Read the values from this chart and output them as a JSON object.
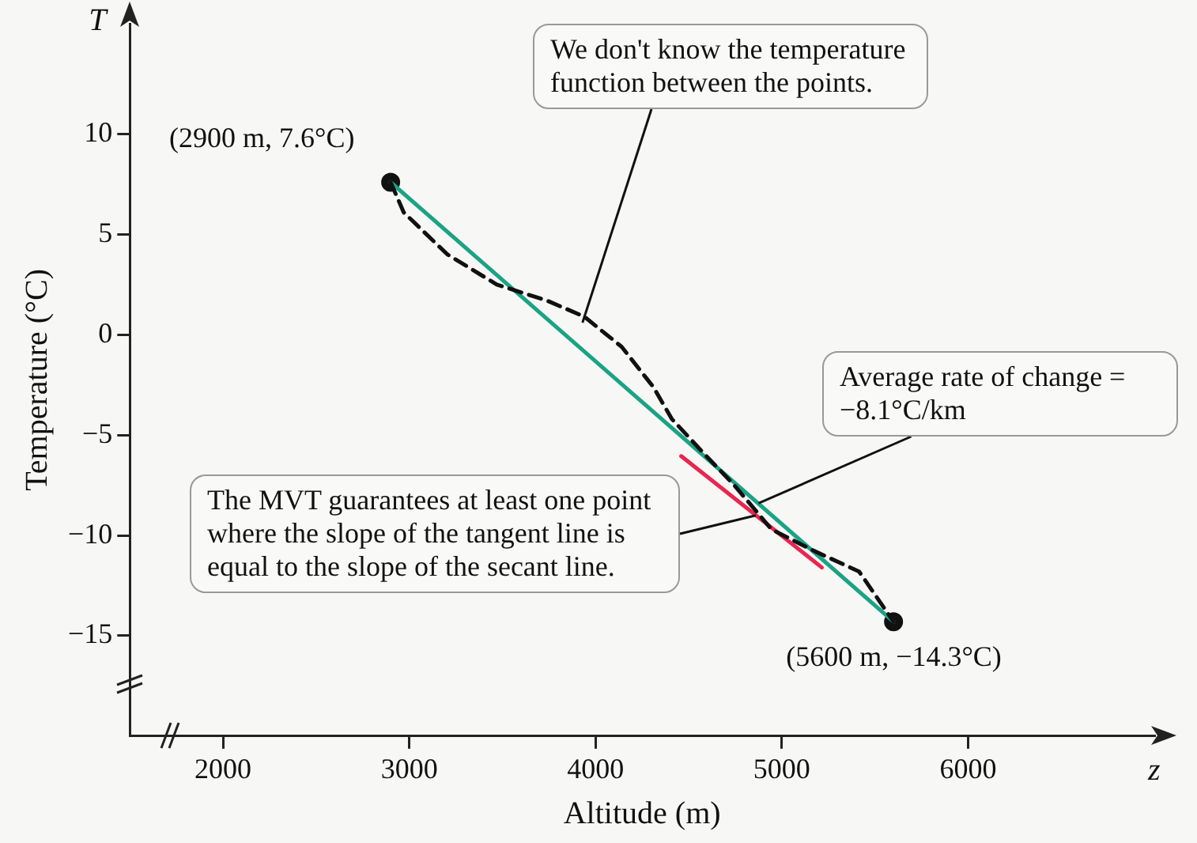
{
  "chart_data": {
    "type": "line",
    "xlabel": "Altitude (m)",
    "ylabel": "Temperature (°C)",
    "xlim": [
      1500,
      7000
    ],
    "xticks": [
      2000,
      3000,
      4000,
      5000,
      6000
    ],
    "ylim": [
      -20,
      15.5
    ],
    "yticks": [
      -15,
      -10,
      -5,
      0,
      5,
      10
    ],
    "series": [
      {
        "type": "line",
        "line_style": "dashed",
        "color": "#111111",
        "x": [
          2900,
          2970,
          3205,
          3470,
          3740,
          3940,
          4140,
          4310,
          4410,
          4580,
          4745,
          4945,
          5180,
          5415,
          5600
        ],
        "values": [
          7.6,
          6.1,
          4.0,
          2.5,
          1.7,
          0.9,
          -0.6,
          -2.6,
          -4.2,
          -5.9,
          -7.5,
          -9.7,
          -10.8,
          -11.8,
          -14.3
        ]
      },
      {
        "type": "line",
        "line_style": "solid",
        "color": "#1aa385",
        "x": [
          2900,
          5600
        ],
        "values": [
          7.6,
          -14.3
        ]
      },
      {
        "type": "line",
        "line_style": "solid",
        "color": "#e8264f",
        "x": [
          4460,
          5215
        ],
        "values": [
          -6.05,
          -11.6
        ]
      },
      {
        "type": "scatter",
        "marker": "circle",
        "color": "#111111",
        "x": [
          2900,
          5600
        ],
        "values": [
          7.6,
          -14.3
        ]
      }
    ],
    "annotations": [
      "T",
      "z",
      {
        "text": "We don't know the temperature function between the points.",
        "x": 3930,
        "y": 0.6
      },
      {
        "text": "Average rate of change = −8.1°C/km",
        "x": 4875,
        "y": -8.4
      },
      {
        "text": "The MVT guarantees at least one point where the slope of the tangent line is equal to the slope of the secant line.",
        "x": 4860,
        "y": -9.0
      },
      {
        "text": "(2900 m, 7.6°C)",
        "x": 2900,
        "y": 7.6
      },
      {
        "text": "(5600 m, −14.3°C)",
        "x": 5600,
        "y": -14.3
      }
    ]
  }
}
